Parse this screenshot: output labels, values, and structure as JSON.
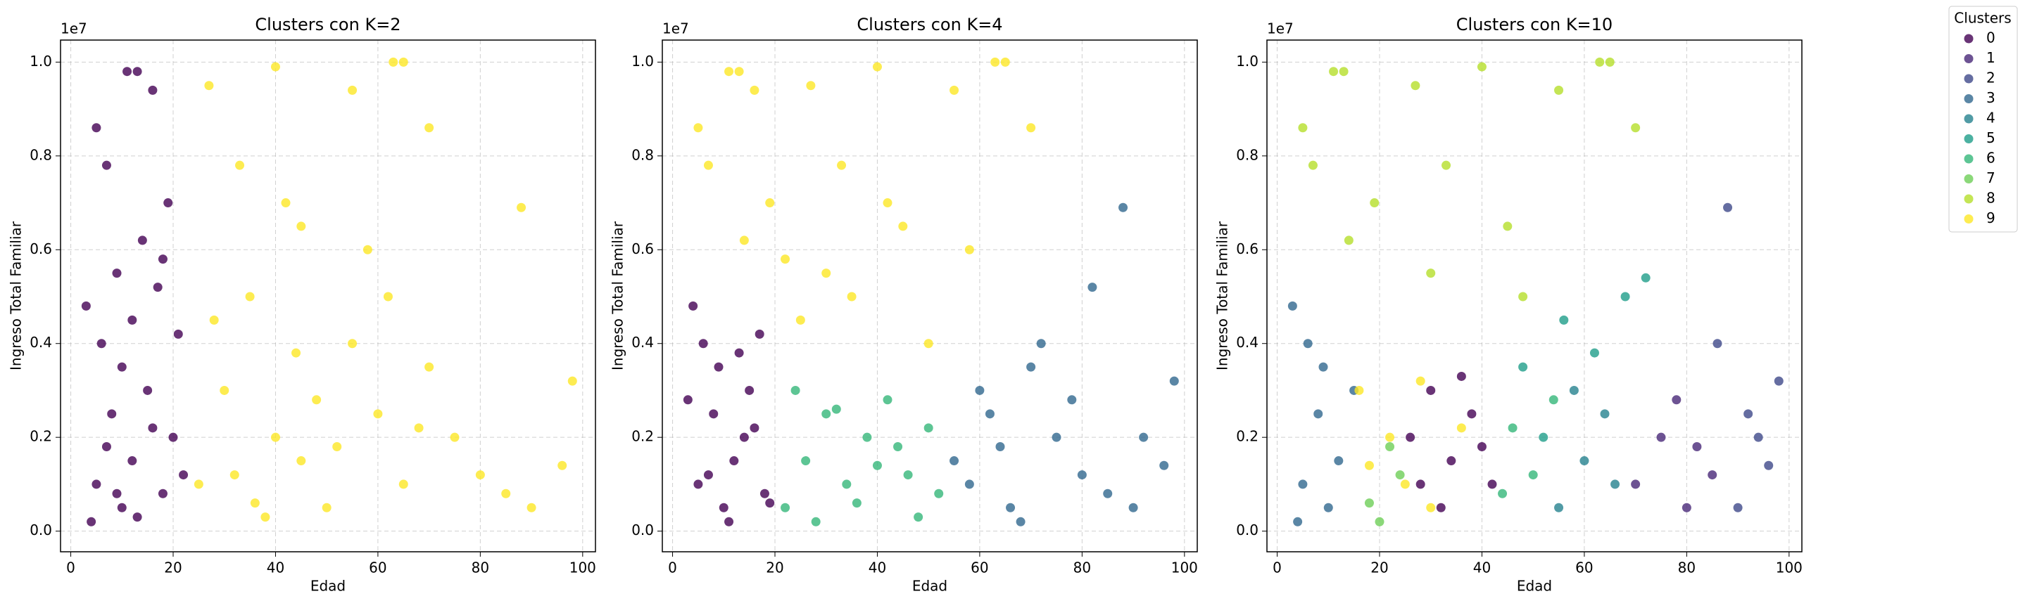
{
  "chart_data": [
    {
      "type": "scatter",
      "title": "Clusters con K=2",
      "xlabel": "Edad",
      "ylabel": "Ingreso Total Familiar",
      "y_offset_label": "1e7",
      "xlim": [
        -2,
        102.5
      ],
      "ylim": [
        -0.044,
        1.047
      ],
      "xticks": [
        0,
        20,
        40,
        60,
        80,
        100
      ],
      "yticks": [
        {
          "value": 0,
          "label": "0.0"
        },
        0.2,
        0.4,
        0.6,
        0.8,
        {
          "value": 1,
          "label": "1.0"
        }
      ],
      "grid": true,
      "series": [
        {
          "color": "#440154",
          "x": [
            5,
            8,
            10,
            12,
            15,
            18,
            6,
            9,
            11,
            13,
            16,
            5,
            7,
            14,
            17,
            20,
            22,
            3,
            19,
            10,
            21,
            4,
            13,
            7,
            16,
            12,
            9,
            18
          ],
          "values": [
            0.1,
            0.25,
            0.05,
            0.15,
            0.3,
            0.08,
            0.4,
            0.55,
            0.98,
            0.98,
            0.94,
            0.86,
            0.78,
            0.62,
            0.52,
            0.2,
            0.12,
            0.48,
            0.7,
            0.35,
            0.42,
            0.02,
            0.03,
            0.18,
            0.22,
            0.45,
            0.08,
            0.58
          ]
        },
        {
          "color": "#fde725",
          "x": [
            25,
            30,
            35,
            40,
            45,
            50,
            55,
            60,
            65,
            70,
            75,
            80,
            85,
            90,
            98,
            96,
            88,
            40,
            65,
            63,
            27,
            33,
            55,
            70,
            45,
            38,
            58,
            28,
            32,
            48,
            52,
            42,
            62,
            36,
            68,
            44
          ],
          "values": [
            0.1,
            0.3,
            0.5,
            0.2,
            0.15,
            0.05,
            0.4,
            0.25,
            0.1,
            0.35,
            0.2,
            0.12,
            0.08,
            0.05,
            0.32,
            0.14,
            0.69,
            0.99,
            1.0,
            1.0,
            0.95,
            0.78,
            0.94,
            0.86,
            0.65,
            0.03,
            0.6,
            0.45,
            0.12,
            0.28,
            0.18,
            0.7,
            0.5,
            0.06,
            0.22,
            0.38
          ]
        }
      ]
    },
    {
      "type": "scatter",
      "title": "Clusters con K=4",
      "xlabel": "Edad",
      "ylabel": "Ingreso Total Familiar",
      "y_offset_label": "1e7",
      "xlim": [
        -2,
        102.5
      ],
      "ylim": [
        -0.044,
        1.047
      ],
      "xticks": [
        0,
        20,
        40,
        60,
        80,
        100
      ],
      "yticks": [
        {
          "value": 0,
          "label": "0.0"
        },
        0.2,
        0.4,
        0.6,
        0.8,
        {
          "value": 1,
          "label": "1.0"
        }
      ],
      "grid": true,
      "series": [
        {
          "color": "#440154",
          "x": [
            5,
            8,
            10,
            12,
            15,
            18,
            6,
            9,
            4,
            14,
            17,
            3,
            11,
            7,
            16,
            13,
            19
          ],
          "values": [
            0.1,
            0.25,
            0.05,
            0.15,
            0.3,
            0.08,
            0.4,
            0.35,
            0.48,
            0.2,
            0.42,
            0.28,
            0.02,
            0.12,
            0.22,
            0.38,
            0.06
          ]
        },
        {
          "color": "#31688e",
          "x": [
            58,
            62,
            66,
            70,
            75,
            80,
            85,
            90,
            98,
            96,
            88,
            72,
            78,
            60,
            64,
            82,
            68,
            92,
            55
          ],
          "values": [
            0.1,
            0.25,
            0.05,
            0.35,
            0.2,
            0.12,
            0.08,
            0.05,
            0.32,
            0.14,
            0.69,
            0.4,
            0.28,
            0.3,
            0.18,
            0.52,
            0.02,
            0.2,
            0.15
          ]
        },
        {
          "color": "#35b779",
          "x": [
            22,
            26,
            30,
            34,
            38,
            42,
            46,
            50,
            24,
            28,
            36,
            44,
            52,
            32,
            40,
            48
          ],
          "values": [
            0.05,
            0.15,
            0.25,
            0.1,
            0.2,
            0.28,
            0.12,
            0.22,
            0.3,
            0.02,
            0.06,
            0.18,
            0.08,
            0.26,
            0.14,
            0.03
          ]
        },
        {
          "color": "#fde725",
          "x": [
            11,
            13,
            16,
            5,
            7,
            14,
            19,
            25,
            30,
            35,
            40,
            45,
            55,
            63,
            65,
            27,
            33,
            70,
            58,
            42,
            50,
            22
          ],
          "values": [
            0.98,
            0.98,
            0.94,
            0.86,
            0.78,
            0.62,
            0.7,
            0.45,
            0.55,
            0.5,
            0.99,
            0.65,
            0.94,
            1.0,
            1.0,
            0.95,
            0.78,
            0.86,
            0.6,
            0.7,
            0.4,
            0.58
          ]
        }
      ]
    },
    {
      "type": "scatter",
      "title": "Clusters con K=10",
      "xlabel": "Edad",
      "ylabel": "Ingreso Total Familiar",
      "y_offset_label": "1e7",
      "legend_title": "Clusters",
      "xlim": [
        -2,
        102.5
      ],
      "ylim": [
        -0.044,
        1.047
      ],
      "xticks": [
        0,
        20,
        40,
        60,
        80,
        100
      ],
      "yticks": [
        {
          "value": 0,
          "label": "0.0"
        },
        0.2,
        0.4,
        0.6,
        0.8,
        {
          "value": 1,
          "label": "1.0"
        }
      ],
      "grid": true,
      "series": [
        {
          "name": "0",
          "color": "#440154",
          "x": [
            26,
            30,
            34,
            38,
            42,
            32,
            36,
            40,
            28
          ],
          "values": [
            0.2,
            0.3,
            0.15,
            0.25,
            0.1,
            0.05,
            0.33,
            0.18,
            0.1
          ]
        },
        {
          "name": "1",
          "color": "#482878",
          "x": [
            70,
            75,
            80,
            85,
            78,
            82
          ],
          "values": [
            0.1,
            0.2,
            0.05,
            0.12,
            0.28,
            0.18
          ]
        },
        {
          "name": "2",
          "color": "#3e4989",
          "x": [
            88,
            90,
            98,
            96,
            92,
            86,
            94
          ],
          "values": [
            0.69,
            0.05,
            0.32,
            0.14,
            0.25,
            0.4,
            0.2
          ]
        },
        {
          "name": "3",
          "color": "#31688e",
          "x": [
            5,
            8,
            10,
            12,
            15,
            3,
            6,
            9,
            4
          ],
          "values": [
            0.1,
            0.25,
            0.05,
            0.15,
            0.3,
            0.48,
            0.4,
            0.35,
            0.02
          ]
        },
        {
          "name": "4",
          "color": "#26828e",
          "x": [
            55,
            60,
            64,
            58,
            66
          ],
          "values": [
            0.05,
            0.15,
            0.25,
            0.3,
            0.1
          ]
        },
        {
          "name": "5",
          "color": "#1f9e89",
          "x": [
            48,
            52,
            56,
            62,
            68,
            72
          ],
          "values": [
            0.35,
            0.2,
            0.45,
            0.38,
            0.5,
            0.54
          ]
        },
        {
          "name": "6",
          "color": "#35b779",
          "x": [
            44,
            46,
            50,
            54
          ],
          "values": [
            0.08,
            0.22,
            0.12,
            0.28
          ]
        },
        {
          "name": "7",
          "color": "#6ece58",
          "x": [
            20,
            24,
            18,
            22
          ],
          "values": [
            0.02,
            0.12,
            0.06,
            0.18
          ]
        },
        {
          "name": "8",
          "color": "#b5de2b",
          "x": [
            11,
            13,
            5,
            7,
            14,
            19,
            27,
            33,
            40,
            45,
            55,
            63,
            65,
            70,
            30,
            48
          ],
          "values": [
            0.98,
            0.98,
            0.86,
            0.78,
            0.62,
            0.7,
            0.95,
            0.78,
            0.99,
            0.65,
            0.94,
            1.0,
            1.0,
            0.86,
            0.55,
            0.5
          ]
        },
        {
          "name": "9",
          "color": "#fde725",
          "x": [
            16,
            22,
            25,
            30,
            36,
            28,
            18
          ],
          "values": [
            0.3,
            0.2,
            0.1,
            0.05,
            0.22,
            0.32,
            0.14
          ]
        }
      ]
    }
  ]
}
